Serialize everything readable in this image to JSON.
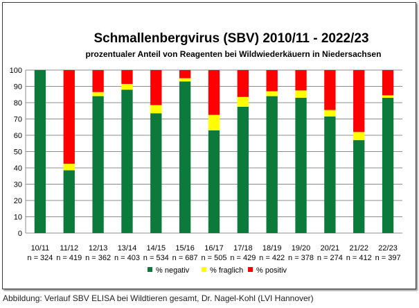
{
  "chart_data": {
    "type": "bar",
    "stacked": true,
    "title": "Schmallenbergvirus (SBV) 2010/11 - 2022/23",
    "subtitle": "prozentualer Anteil von Reagenten bei Wildwiederkäuern in Niedersachsen",
    "categories": [
      "10/11",
      "11/12",
      "12/13",
      "13/14",
      "14/15",
      "15/16",
      "16/17",
      "17/18",
      "18/19",
      "19/20",
      "20/21",
      "21/22",
      "22/23"
    ],
    "n_labels": [
      "n = 324",
      "n = 419",
      "n = 362",
      "n = 403",
      "n = 534",
      "n = 687",
      "n = 505",
      "n = 429",
      "n = 422",
      "n = 378",
      "n = 274",
      "n = 412",
      "n = 397"
    ],
    "series": [
      {
        "name": "% negativ",
        "color": "#0b7a3b",
        "values": [
          100,
          38.5,
          84,
          88,
          73.5,
          93,
          63,
          77.5,
          84,
          83,
          71.5,
          57,
          83
        ]
      },
      {
        "name": "% fraglich",
        "color": "#ffff00",
        "values": [
          0,
          4,
          2.5,
          3.5,
          5,
          2,
          9.5,
          6,
          3,
          4.5,
          4,
          5,
          1.5
        ]
      },
      {
        "name": "% positiv",
        "color": "#ff0000",
        "values": [
          0,
          57.5,
          13.5,
          8.5,
          21.5,
          5,
          27.5,
          16.5,
          13,
          12.5,
          24.5,
          38,
          15.5
        ]
      }
    ],
    "yticks": [
      "0",
      "10",
      "20",
      "30",
      "40",
      "50",
      "60",
      "70",
      "80",
      "90",
      "100"
    ],
    "ylim": [
      0,
      100
    ],
    "grid": true,
    "legend": "bottom"
  },
  "caption": "Abbildung:  Verlauf SBV ELISA bei Wildtieren gesamt, Dr. Nagel-Kohl (LVI Hannover)"
}
